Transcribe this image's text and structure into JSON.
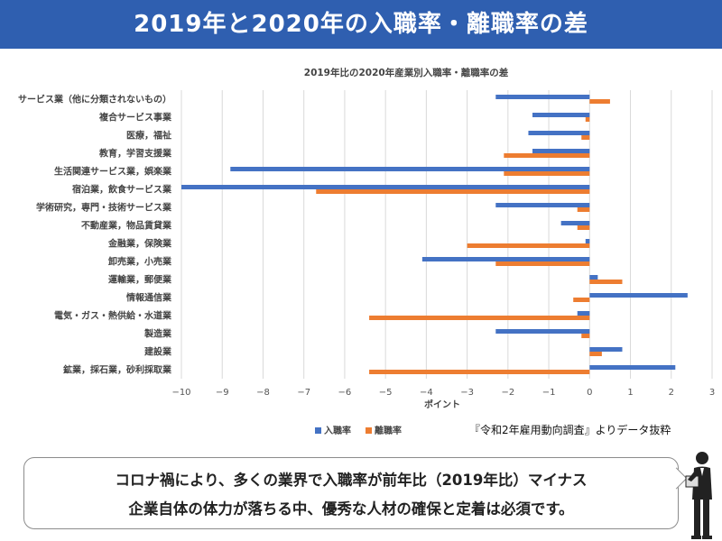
{
  "header": {
    "title": "2019年と2020年の入職率・離職率の差"
  },
  "source_note": "『令和2年雇用動向調査』よりデータ抜粋",
  "message": {
    "line1": "コロナ禍により、多くの業界で入職率が前年比（2019年比）マイナス",
    "line2": "企業自体の体力が落ちる中、優秀な人材の確保と定着は必須です。"
  },
  "colors": {
    "header_bg": "#2f5fb0",
    "series_entry": "#4472c4",
    "series_leave": "#ed7d31"
  },
  "chart_data": {
    "type": "bar",
    "orientation": "horizontal",
    "title": "2019年比の2020年産業別入職率・離職率の差",
    "xlabel": "ポイント",
    "ylabel": "",
    "xlim": [
      -10,
      3
    ],
    "xticks": [
      "−10",
      "−9",
      "−8",
      "−7",
      "−6",
      "−5",
      "−4",
      "−3",
      "−2",
      "−1",
      "0",
      "1",
      "2",
      "3"
    ],
    "grid": "vertical",
    "legend_position": "bottom-left",
    "categories": [
      "サービス業（他に分類されないもの）",
      "複合サービス事業",
      "医療，福祉",
      "教育，学習支援業",
      "生活関連サービス業，娯楽業",
      "宿泊業，飲食サービス業",
      "学術研究，専門・技術サービス業",
      "不動産業，物品賃貸業",
      "金融業，保険業",
      "卸売業，小売業",
      "運輸業，郵便業",
      "情報通信業",
      "電気・ガス・熱供給・水道業",
      "製造業",
      "建設業",
      "鉱業，採石業，砂利採取業"
    ],
    "series": [
      {
        "name": "入職率",
        "values": [
          -2.3,
          -1.4,
          -1.5,
          -1.4,
          -8.8,
          -10.0,
          -2.3,
          -0.7,
          -0.1,
          -4.1,
          0.2,
          2.4,
          -0.3,
          -2.3,
          0.8,
          2.1
        ]
      },
      {
        "name": "離職率",
        "values": [
          0.5,
          -0.1,
          -0.2,
          -2.1,
          -2.1,
          -6.7,
          -0.3,
          -0.3,
          -3.0,
          -2.3,
          0.8,
          -0.4,
          -5.4,
          -0.2,
          0.3,
          -5.4
        ]
      }
    ]
  }
}
